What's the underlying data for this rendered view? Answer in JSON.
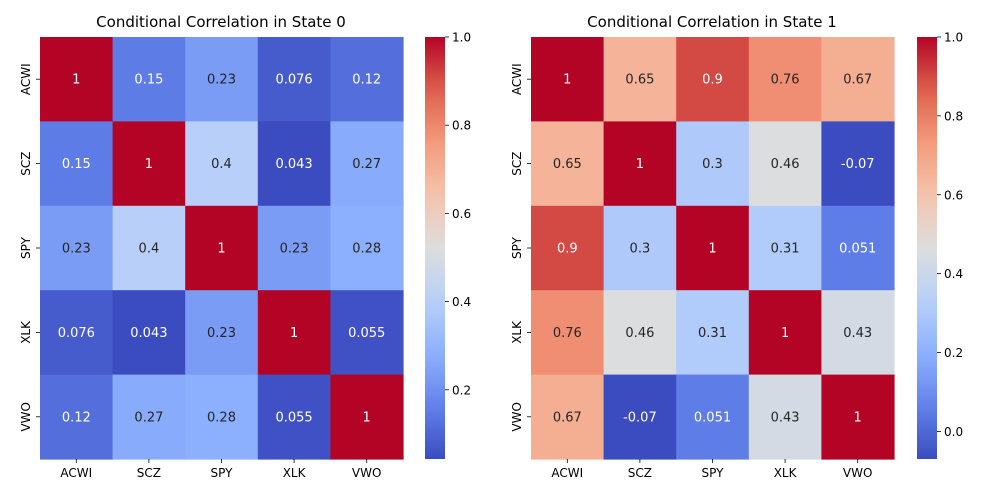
{
  "chart_data": [
    {
      "type": "heatmap",
      "title": "Conditional Correlation in State 0",
      "xlabel": "",
      "ylabel": "",
      "x_categories": [
        "ACWI",
        "SCZ",
        "SPY",
        "XLK",
        "VWO"
      ],
      "y_categories": [
        "ACWI",
        "SCZ",
        "SPY",
        "XLK",
        "VWO"
      ],
      "values": [
        [
          1,
          0.15,
          0.23,
          0.076,
          0.12
        ],
        [
          0.15,
          1,
          0.4,
          0.043,
          0.27
        ],
        [
          0.23,
          0.4,
          1,
          0.23,
          0.28
        ],
        [
          0.076,
          0.043,
          0.23,
          1,
          0.055
        ],
        [
          0.12,
          0.27,
          0.28,
          0.055,
          1
        ]
      ],
      "cell_labels": [
        [
          "1",
          "0.15",
          "0.23",
          "0.076",
          "0.12"
        ],
        [
          "0.15",
          "1",
          "0.4",
          "0.043",
          "0.27"
        ],
        [
          "0.23",
          "0.4",
          "1",
          "0.23",
          "0.28"
        ],
        [
          "0.076",
          "0.043",
          "0.23",
          "1",
          "0.055"
        ],
        [
          "0.12",
          "0.27",
          "0.28",
          "0.055",
          "1"
        ]
      ],
      "colormap": "coolwarm",
      "vmin": 0.043,
      "vmax": 1.0,
      "colorbar_ticks": [
        0.2,
        0.4,
        0.6,
        0.8,
        1.0
      ],
      "colorbar_tick_labels": [
        "0.2",
        "0.4",
        "0.6",
        "0.8",
        "1.0"
      ],
      "grid": false
    },
    {
      "type": "heatmap",
      "title": "Conditional Correlation in State 1",
      "xlabel": "",
      "ylabel": "",
      "x_categories": [
        "ACWI",
        "SCZ",
        "SPY",
        "XLK",
        "VWO"
      ],
      "y_categories": [
        "ACWI",
        "SCZ",
        "SPY",
        "XLK",
        "VWO"
      ],
      "values": [
        [
          1,
          0.65,
          0.9,
          0.76,
          0.67
        ],
        [
          0.65,
          1,
          0.3,
          0.46,
          -0.07
        ],
        [
          0.9,
          0.3,
          1,
          0.31,
          0.051
        ],
        [
          0.76,
          0.46,
          0.31,
          1,
          0.43
        ],
        [
          0.67,
          -0.07,
          0.051,
          0.43,
          1
        ]
      ],
      "cell_labels": [
        [
          "1",
          "0.65",
          "0.9",
          "0.76",
          "0.67"
        ],
        [
          "0.65",
          "1",
          "0.3",
          "0.46",
          "-0.07"
        ],
        [
          "0.9",
          "0.3",
          "1",
          "0.31",
          "0.051"
        ],
        [
          "0.76",
          "0.46",
          "0.31",
          "1",
          "0.43"
        ],
        [
          "0.67",
          "-0.07",
          "0.051",
          "0.43",
          "1"
        ]
      ],
      "colormap": "coolwarm",
      "vmin": -0.07,
      "vmax": 1.0,
      "colorbar_ticks": [
        0.0,
        0.2,
        0.4,
        0.6,
        0.8,
        1.0
      ],
      "colorbar_tick_labels": [
        "0.0",
        "0.2",
        "0.4",
        "0.6",
        "0.8",
        "1.0"
      ],
      "grid": false
    }
  ]
}
